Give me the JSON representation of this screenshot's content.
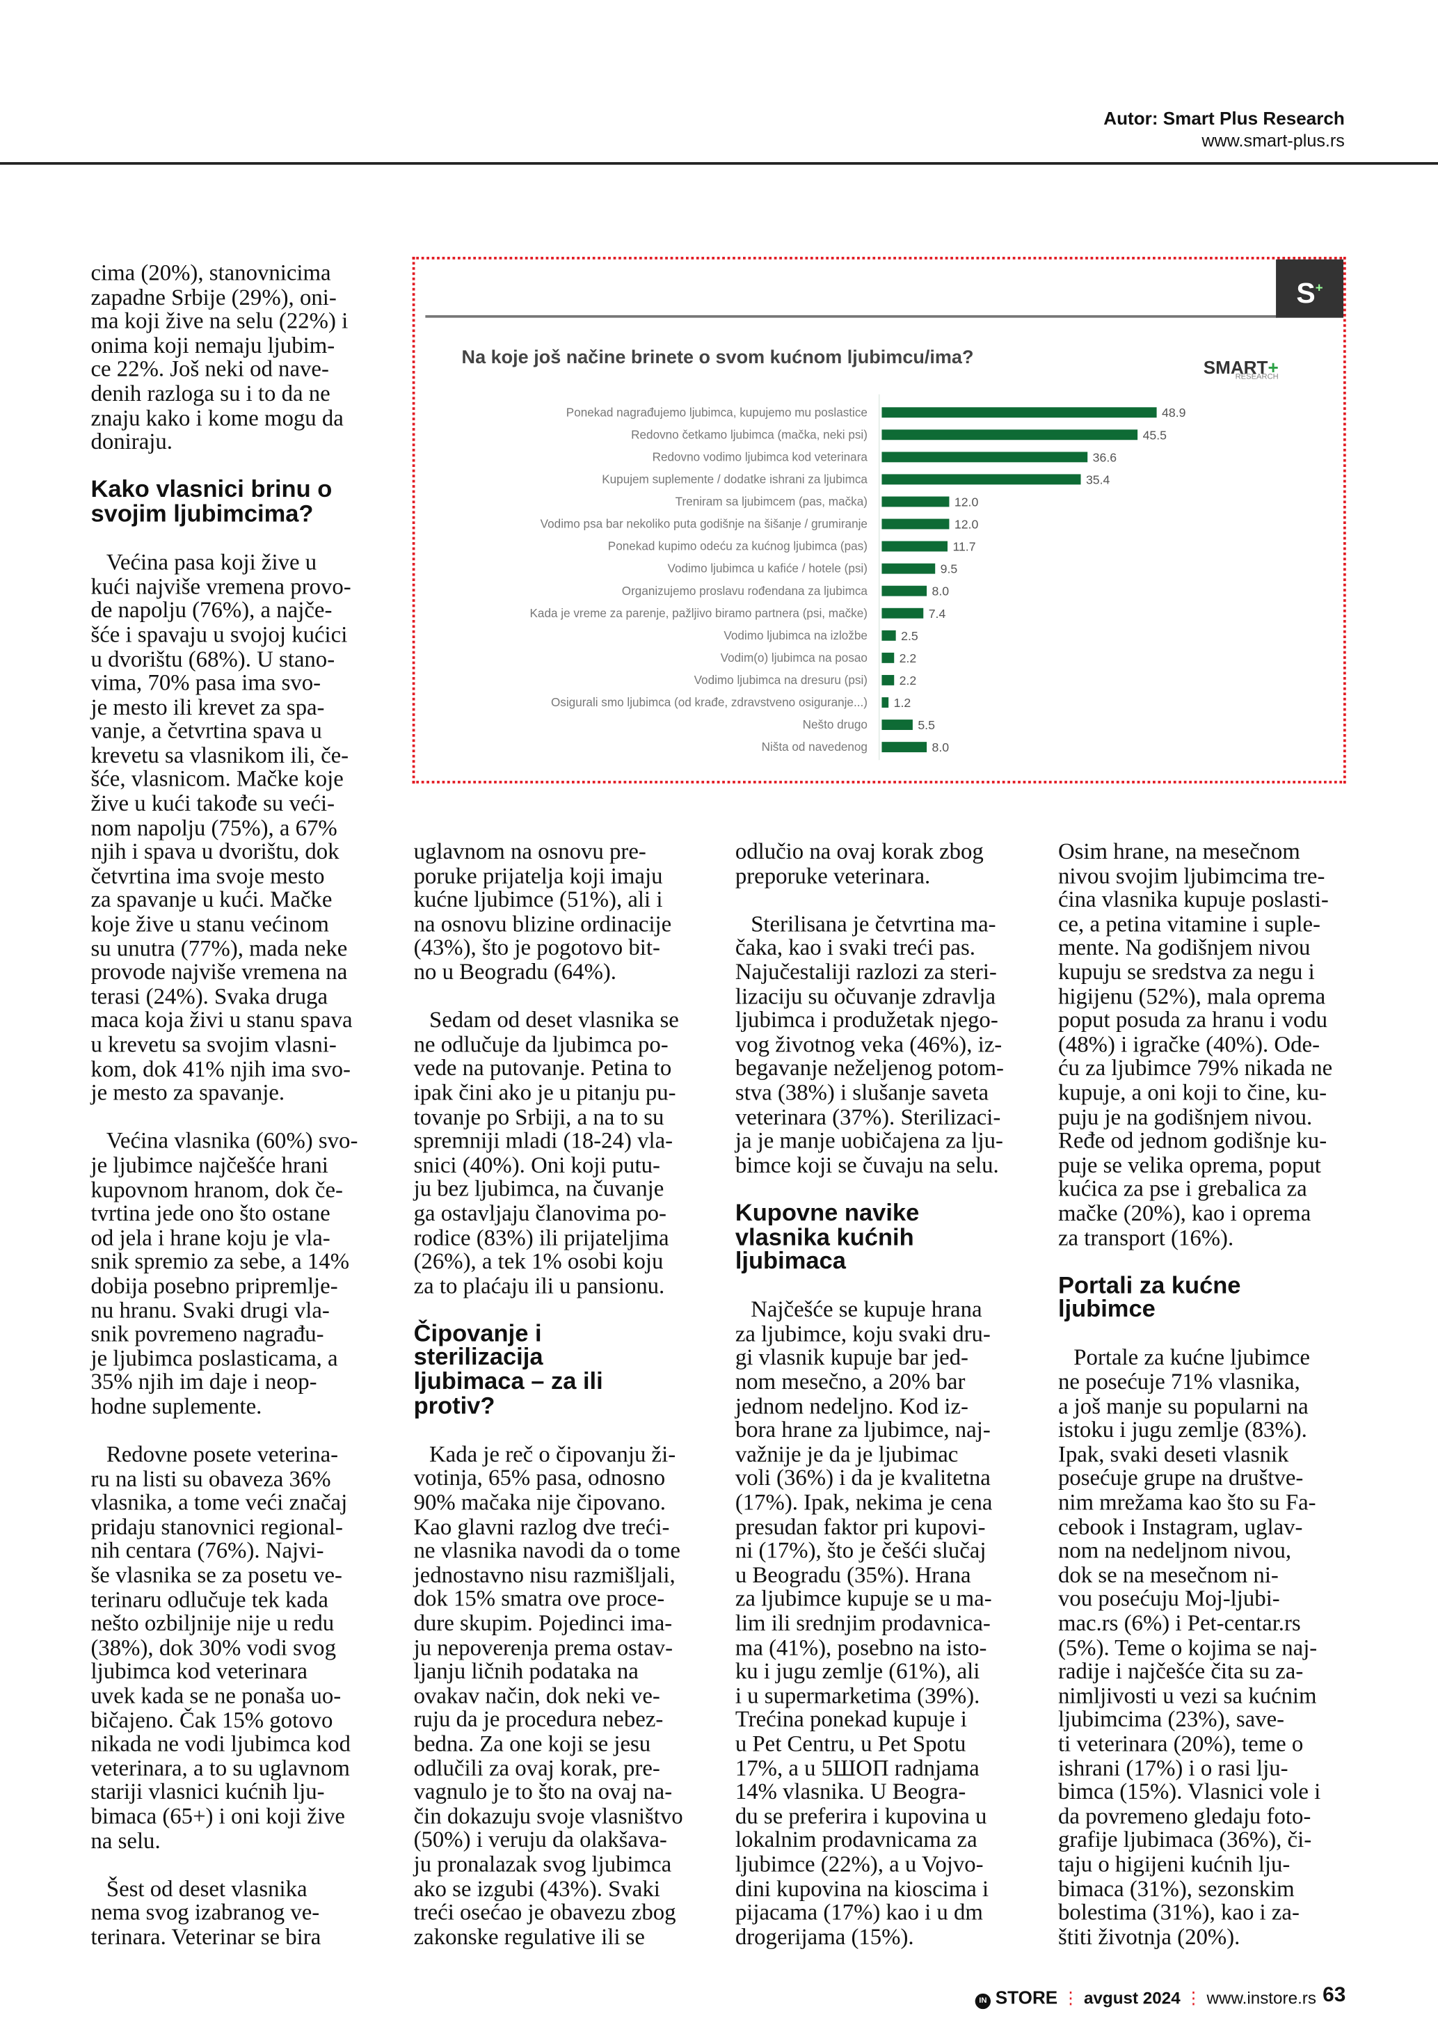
{
  "header": {
    "author": "Autor: Smart Plus Research",
    "url": "www.smart-plus.rs"
  },
  "chart_data": {
    "type": "bar",
    "orientation": "horizontal",
    "title": "Na koje još načine brinete o svom kućnom ljubimcu/ima?",
    "brand_logo": "SMART+ RESEARCH",
    "corner_logo": "S+",
    "bar_color": "#0e6b35",
    "categories": [
      "Ponekad nagrađujemo ljubimca, kupujemo mu poslastice",
      "Redovno četkamo ljubimca (mačka, neki psi)",
      "Redovno vodimo ljubimca kod veterinara",
      "Kupujem suplemente / dodatke ishrani za ljubimca",
      "Treniram sa ljubimcem (pas, mačka)",
      "Vodimo psa bar nekoliko puta godišnje na šišanje / grumiranje",
      "Ponekad kupimo odeću za kućnog ljubimca (pas)",
      "Vodimo ljubimca u kafiće / hotele (psi)",
      "Organizujemo proslavu rođendana za ljubimca",
      "Kada je vreme za parenje, pažljivo biramo partnera (psi, mačke)",
      "Vodimo ljubimca na izložbe",
      "Vodim(o) ljubimca na posao",
      "Vodimo ljubimca na dresuru (psi)",
      "Osigurali smo ljubimca (od krađe, zdravstveno osiguranje...)",
      "Nešto drugo",
      "Ništa od navedenog"
    ],
    "values": [
      48.9,
      45.5,
      36.6,
      35.4,
      12.0,
      12.0,
      11.7,
      9.5,
      8.0,
      7.4,
      2.5,
      2.2,
      2.2,
      1.2,
      5.5,
      8.0
    ],
    "value_labels": [
      "48.9",
      "45.5",
      "36.6",
      "35.4",
      "12.0",
      "12.0",
      "11.7",
      "9.5",
      "8.0",
      "7.4",
      "2.5",
      "2.2",
      "2.2",
      "1.2",
      "5.5",
      "8.0"
    ],
    "xlim": [
      0,
      50
    ]
  },
  "columns": [
    [
      {
        "t": "p",
        "text": "cima (20%), stanovnicima\nzapadne Srbije (29%), oni-\nma koji žive na selu (22%) i\nonima koji nemaju ljubim-\nce 22%. Još neki od nave-\ndenih razloga su i to da ne\nznaju kako i kome mogu da\ndoniraju."
      },
      {
        "t": "h",
        "text": "Kako vlasnici brinu o\nsvojim ljubimcima?"
      },
      {
        "t": "p",
        "text": "Većina pasa koji žive u\nkući najviše vremena provo-\nde napolju (76%), a najče-\nšće i spavaju u svojoj kućici\nu dvorištu (68%). U stano-\nvima, 70% pasa ima svo-\nje mesto ili krevet za spa-\nvanje, a četvrtina spava u\nkrevetu sa vlasnikom ili, če-\nšće, vlasnicom. Mačke koje\nžive u kući takođe su veći-\nnom napolju (75%), a 67%\nnjih i spava u dvorištu, dok\nčetvrtina ima svoje mesto\nza spavanje u kući. Mačke\nkoje žive u stanu većinom\nsu unutra (77%), mada neke\nprovode najviše vremena na\nterasi (24%). Svaka druga\nmaca koja živi u stanu spava\nu krevetu sa svojim vlasni-\nkom, dok 41% njih ima svo-\nje mesto za spavanje."
      },
      {
        "t": "p",
        "text": "Većina vlasnika (60%) svo-\nje ljubimce najčešće hrani\nkupovnom hranom, dok če-\ntvrtina jede ono što ostane\nod jela i hrane koju je vla-\nsnik spremio za sebe, a 14%\ndobija posebno pripremlje-\nnu hranu. Svaki drugi vla-\nsnik povremeno nagrađu-\nje ljubimca poslasticama, a\n35% njih im daje i neop-\nhodne suplemente."
      },
      {
        "t": "p",
        "text": "Redovne posete veterina-\nru na listi su obaveza 36%\nvlasnika, a tome veći značaj\npridaju stanovnici regional-\nnih centara (76%). Najvi-\nše vlasnika se za posetu ve-\nterinaru odlučuje tek kada\nnešto ozbiljnije nije u redu\n(38%), dok 30% vodi svog\nljubimca kod veterinara\nuvek kada se ne ponaša uo-\nbičajeno. Čak 15% gotovo\nnikada ne vodi ljubimca kod\nveterinara, a to su uglavnom\nstariji vlasnici kućnih lju-\nbimaca (65+) i oni koji žive\nna selu."
      },
      {
        "t": "p",
        "text": "Šest od deset vlasnika\nnema svog izabranog ve-\nterinara. Veterinar se bira"
      }
    ],
    [
      {
        "t": "p",
        "text": "uglavnom na osnovu pre-\nporuke prijatelja koji imaju\nkućne ljubimce (51%), ali i\nna osnovu blizine ordinacije\n(43%), što je pogotovo bit-\nno u Beogradu (64%)."
      },
      {
        "t": "p",
        "text": "Sedam od deset vlasnika se\nne odlučuje da ljubimca po-\nvede na putovanje. Petina to\nipak čini ako je u pitanju pu-\ntovanje po Srbiji, a na to su\nspremniji mladi (18-24) vla-\nsnici (40%). Oni koji putu-\nju bez ljubimca, na čuvanje\nga ostavljaju članovima po-\nrodice (83%) ili prijateljima\n(26%), a tek 1% osobi koju\nza to plaćaju ili u pansionu."
      },
      {
        "t": "h",
        "text": "Čipovanje i\nsterilizacija\nljubimaca – za ili\nprotiv?"
      },
      {
        "t": "p",
        "text": "Kada je reč o čipovanju ži-\nvotinja, 65% pasa, odnosno\n90% mačaka nije čipovano.\nKao glavni razlog dve treći-\nne vlasnika navodi da o tome\njednostavno nisu razmišljali,\ndok 15% smatra ove proce-\ndure skupim. Pojedinci ima-\nju nepoverenja prema ostav-\nljanju ličnih podataka na\novakav način, dok neki ve-\nruju da je procedura nebez-\nbedna. Za one koji se jesu\nodlučili za ovaj korak, pre-\nvagnulo je to što na ovaj na-\nčin dokazuju svoje vlasništvo\n(50%) i veruju da olakšava-\nju pronalazak svog ljubimca\nako se izgubi (43%). Svaki\ntreći osećao je obavezu zbog\nzakonske regulative ili se"
      }
    ],
    [
      {
        "t": "p",
        "text": "odlučio na ovaj korak zbog\npreporuke veterinara."
      },
      {
        "t": "p",
        "text": "Sterilisana je četvrtina ma-\nčaka, kao i svaki treći pas.\nNajučestaliji razlozi za steri-\nlizaciju su očuvanje zdravlja\nljubimca i produžetak njego-\nvog životnog veka (46%), iz-\nbegavanje neželjenog potom-\nstva (38%) i slušanje saveta\nveterinara (37%). Sterilizaci-\nja je manje uobičajena za lju-\nbimce koji se čuvaju na selu."
      },
      {
        "t": "h",
        "text": "Kupovne navike\nvlasnika kućnih\nljubimaca"
      },
      {
        "t": "p",
        "text": "Najčešće se kupuje hrana\nza ljubimce, koju svaki dru-\ngi vlasnik kupuje bar jed-\nnom mesečno, a 20% bar\njednom nedeljno. Kod iz-\nbora hrane za ljubimce, naj-\nvažnije je da je ljubimac\nvoli (36%) i da je kvalitetna\n(17%). Ipak, nekima je cena\npresudan faktor pri kupovi-\nni (17%), što je češći slučaj\nu Beogradu (35%). Hrana\nza ljubimce kupuje se u ma-\nlim ili srednjim prodavnica-\nma (41%), posebno na isto-\nku i jugu zemlje (61%), ali\ni u supermarketima (39%).\nTrećina ponekad kupuje i\nu Pet Centru, u Pet Spotu\n17%, a u 5ШОП radnjama\n14% vlasnika. U Beogra-\ndu se preferira i kupovina u\nlokalnim prodavnicama za\nljubimce (22%), a u Vojvo-\ndini kupovina na kioscima i\npijacama (17%) kao i u dm\ndrogerijama (15%)."
      }
    ],
    [
      {
        "t": "p",
        "text": "Osim hrane, na mesečnom\nnivou svojim ljubimcima tre-\nćina vlasnika kupuje poslasti-\nce, a petina vitamine i suple-\nmente. Na godišnjem nivou\nkupuju se sredstva za negu i\nhigijenu (52%), mala oprema\npoput posuda za hranu i vodu\n(48%) i igračke (40%). Ode-\nću za ljubimce 79% nikada ne\nkupuje, a oni koji to čine, ku-\npuju je na godišnjem nivou.\nRеđe od jednom godišnje ku-\npuje se velika oprema, poput\nkućica za pse i grebalica za\nmačke (20%), kao i oprema\nza transport (16%)."
      },
      {
        "t": "h",
        "text": "Portali za kućne\nljubimce"
      },
      {
        "t": "p",
        "text": "Portale za kućne ljubimce\nne posećuje 71% vlasnika,\na još manje su popularni na\nistoku i jugu zemlje (83%).\nIpak, svaki deseti vlasnik\nposećuje grupe na društve-\nnim mrežama kao što su Fa-\ncebook i Instagram, uglav-\nnom na nedeljnom nivou,\ndok se na mesečnom ni-\nvou posećuju Moj-ljubi-\nmac.rs (6%) i Pet-centar.rs\n(5%). Teme o kojima se naj-\nradije i najčešće čita su za-\nnimljivosti u vezi sa kućnim\nljubimcima (23%), save-\nti veterinara (20%), teme o\nishrani (17%) i o rasi lju-\nbimca (15%). Vlasnici vole i\nda povremeno gledaju foto-\ngrafije ljubimaca (36%), či-\ntaju o higijeni kućnih lju-\nbimaca (31%), sezonskim\nbolestima (31%), kao i za-\nštiti životnja (20%)."
      }
    ]
  ],
  "footer": {
    "magazine": "STORE",
    "magazine_mark": "IN",
    "issue": "avgust 2024",
    "site": "www.instore.rs",
    "page": "63"
  },
  "colors": {
    "accent": "#e21b23",
    "bar": "#0e6b35"
  }
}
